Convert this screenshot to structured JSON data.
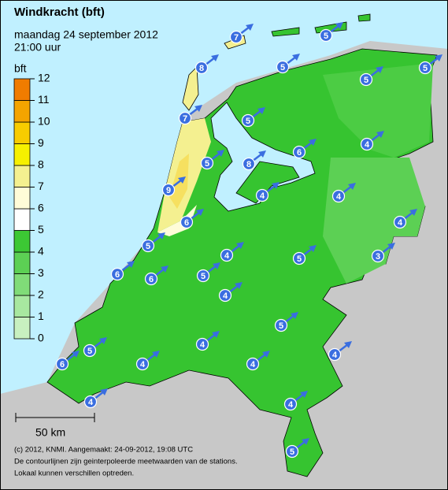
{
  "header": {
    "title": "Windkracht (bft)",
    "date": "maandag 24 september 2012",
    "time": "21:00 uur"
  },
  "legend": {
    "title": "bft",
    "levels": [
      0,
      1,
      2,
      3,
      4,
      5,
      6,
      7,
      8,
      9,
      10,
      11,
      12
    ],
    "colors": [
      "#c8f0c0",
      "#a8e8a0",
      "#80dc78",
      "#5cd054",
      "#3cc834",
      "#ffffff",
      "#fffcd8",
      "#f4f090",
      "#f6f000",
      "#f8cc00",
      "#f4a400",
      "#f07c00"
    ]
  },
  "stations": [
    7,
    5,
    8,
    5,
    5,
    5,
    7,
    5,
    6,
    4,
    5,
    8,
    9,
    4,
    4,
    6,
    4,
    5,
    4,
    5,
    3,
    6,
    6,
    5,
    4,
    5,
    4,
    5,
    6,
    4,
    4,
    4,
    4,
    4,
    5
  ],
  "scale": "50 km",
  "footer": [
    "(c) 2012, KNMI. Aangemaakt: 24-09-2012, 19:08 UTC",
    "De contourlijnen zijn geinterpoleerde meetwaarden van de stations.",
    "Lokaal kunnen verschillen optreden."
  ]
}
